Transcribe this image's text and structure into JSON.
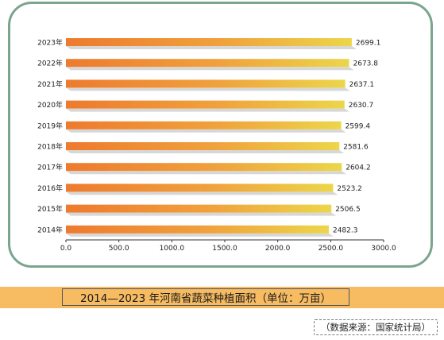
{
  "caption": "2014—2023 年河南省蔬菜种植面积（单位：万亩）",
  "source": "（数据来源：国家统计局）",
  "colors": {
    "frame": "#7aa58e",
    "band": "#f7bb62",
    "bar_start": "#ee7a2e",
    "bar_end": "#ecd64a",
    "bar_shadow": "#c9c9c9"
  },
  "chart_data": {
    "type": "bar",
    "orientation": "horizontal",
    "categories": [
      "2023年",
      "2022年",
      "2021年",
      "2020年",
      "2019年",
      "2018年",
      "2017年",
      "2016年",
      "2015年",
      "2014年"
    ],
    "values": [
      2699.1,
      2673.8,
      2637.1,
      2630.7,
      2599.4,
      2581.6,
      2604.2,
      2523.2,
      2506.5,
      2482.3
    ],
    "value_labels": [
      "2699.1",
      "2673.8",
      "2637.1",
      "2630.7",
      "2599.4",
      "2581.6",
      "2604.2",
      "2523.2",
      "2506.5",
      "2482.3"
    ],
    "xticks": [
      "0.0",
      "500.0",
      "1000.0",
      "1500.0",
      "2000.0",
      "2500.0",
      "3000.0"
    ],
    "xlim": [
      0,
      3000
    ],
    "title": "",
    "xlabel": "",
    "ylabel": "",
    "grid": false,
    "legend": "none"
  }
}
